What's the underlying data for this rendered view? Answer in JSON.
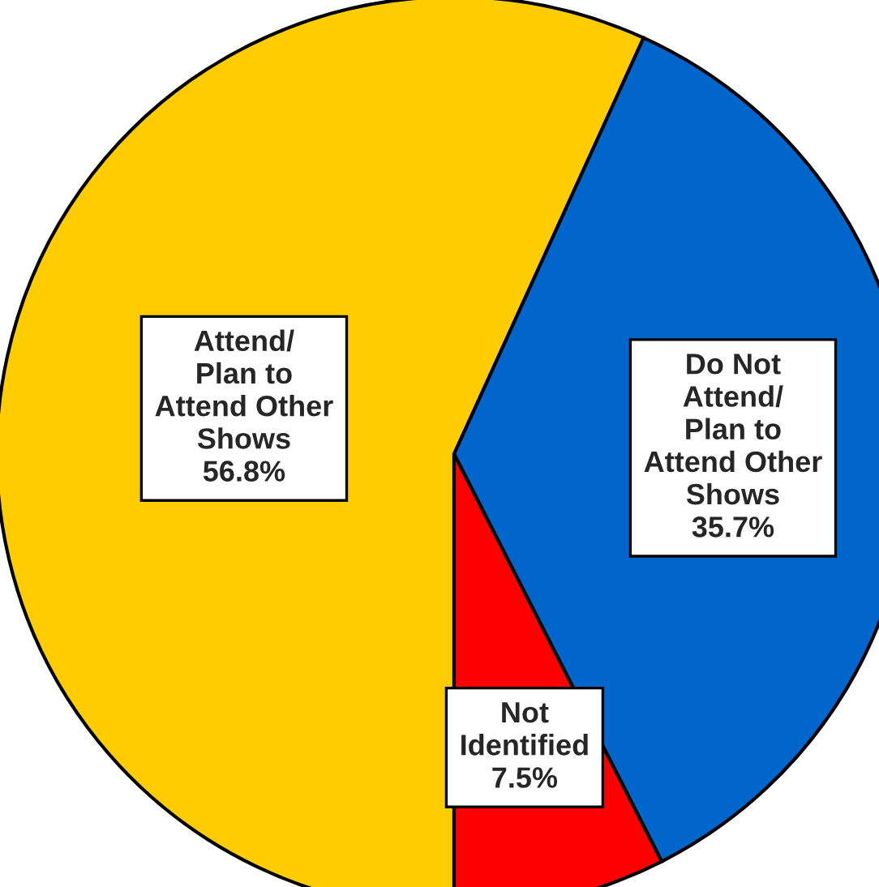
{
  "chart_data": {
    "type": "pie",
    "categories": [
      "Attend/\nPlan to\nAttend Other\nShows",
      "Do Not\nAttend/\nPlan to\nAttend Other\nShows",
      "Not\nIdentified"
    ],
    "values": [
      56.8,
      35.7,
      7.5
    ],
    "colors": [
      "#ffcc00",
      "#0066cc",
      "#ff0000"
    ],
    "value_labels": [
      "56.8%",
      "35.7%",
      "7.5%"
    ]
  }
}
